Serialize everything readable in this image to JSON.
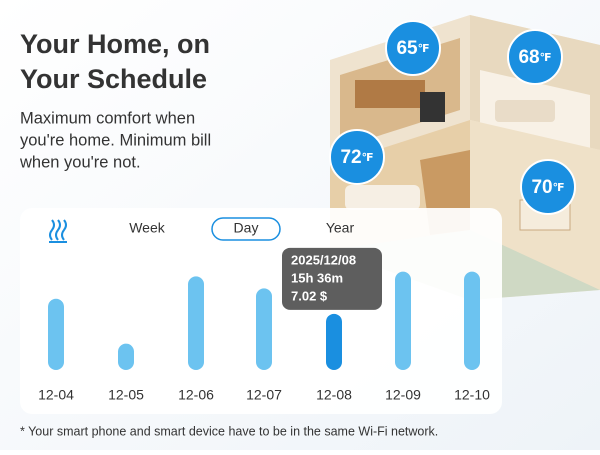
{
  "header": {
    "title_lines": [
      "Your Home, on",
      "Your Schedule"
    ],
    "subtitle_lines": [
      "Maximum comfort when",
      "you're home. Minimum bill",
      "when you're not."
    ]
  },
  "badges": [
    {
      "value": "65",
      "unit": "℉"
    },
    {
      "value": "68",
      "unit": "℉"
    },
    {
      "value": "72",
      "unit": "℉"
    },
    {
      "value": "70",
      "unit": "℉"
    }
  ],
  "tabs": [
    "Week",
    "Day",
    "Year"
  ],
  "active_tab": 1,
  "chart_data": {
    "type": "bar",
    "categories": [
      "12-04",
      "12-05",
      "12-06",
      "12-07",
      "12-08",
      "12-09",
      "12-10"
    ],
    "values": [
      8.9,
      3.3,
      11.7,
      10.2,
      7.02,
      12.3,
      12.3
    ],
    "colors": [
      "#6cc3f0",
      "#6cc3f0",
      "#6cc3f0",
      "#6cc3f0",
      "#1a8fe0",
      "#6cc3f0",
      "#6cc3f0"
    ],
    "ylim": [
      0,
      12.5
    ],
    "tooltip": {
      "date": "2025/12/08",
      "duration": "15h 36m",
      "cost": "7.02 $"
    }
  },
  "footnote": "* Your smart phone and smart device have to be in the same Wi-Fi network."
}
